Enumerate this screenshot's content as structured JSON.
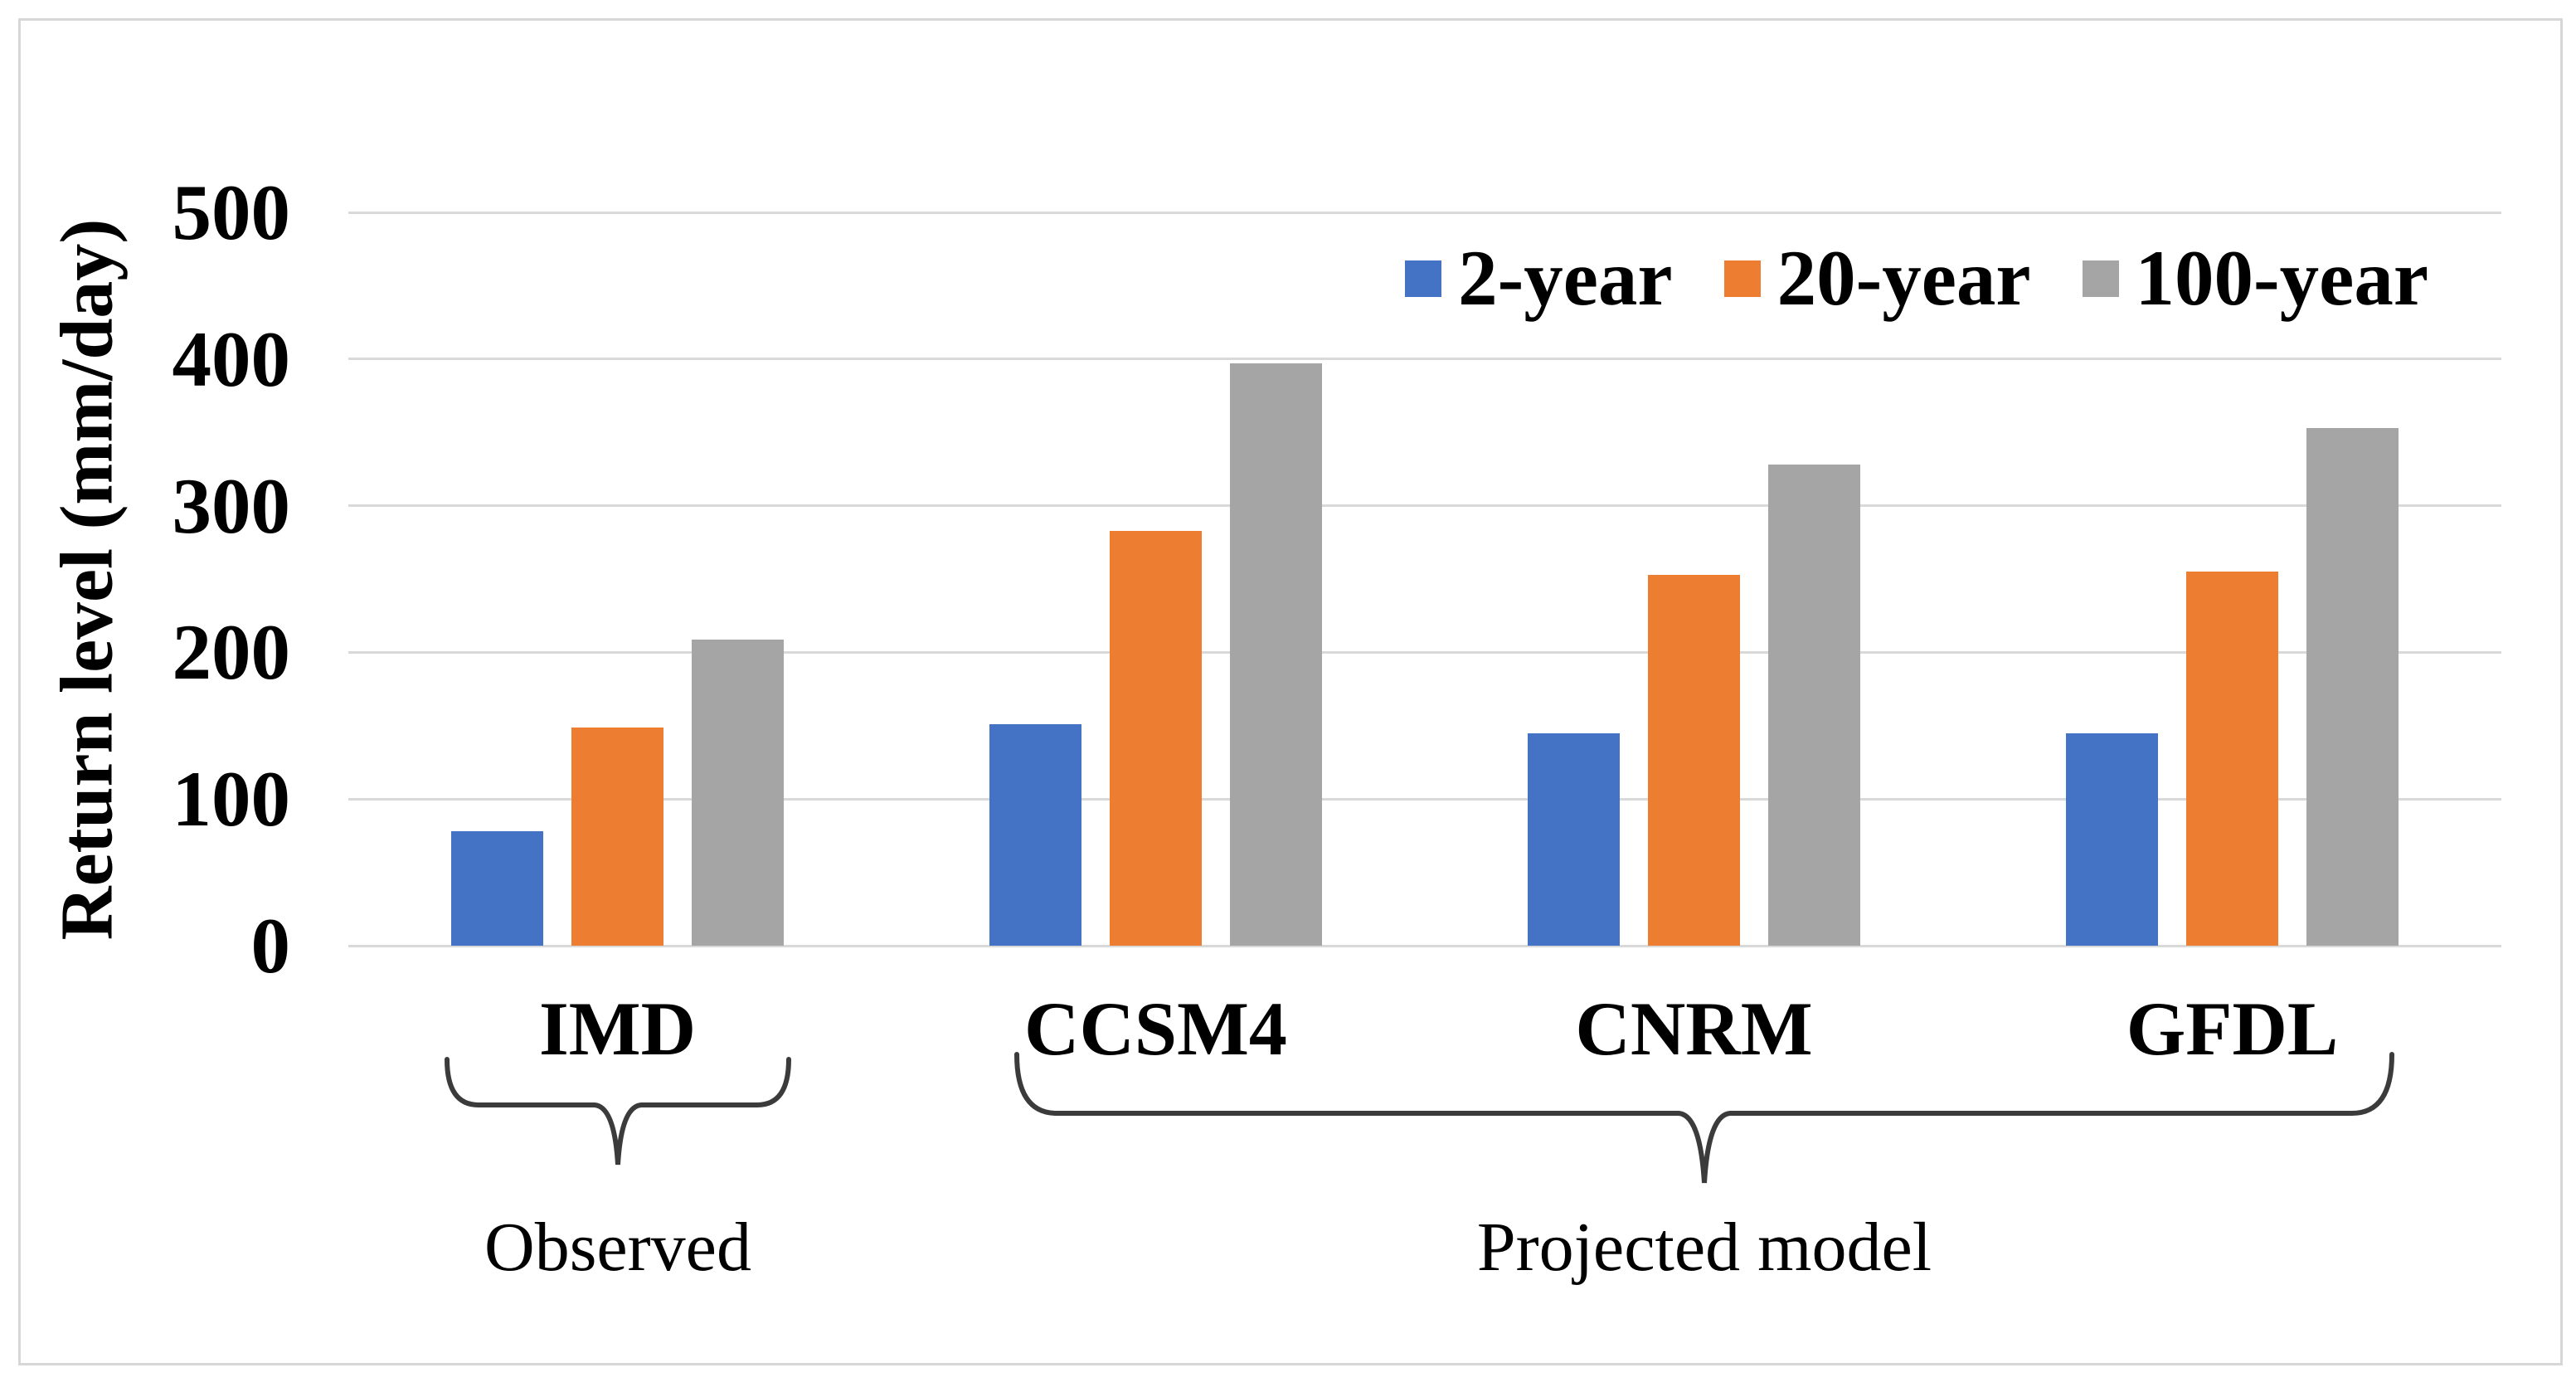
{
  "figure": {
    "ylabel": "Return level (mm/day)"
  },
  "chart_data": {
    "type": "bar",
    "title": "",
    "xlabel": "",
    "ylabel": "Return level (mm/day)",
    "categories": [
      "IMD",
      "CCSM4",
      "CNRM",
      "GFDL"
    ],
    "series": [
      {
        "name": "2-year",
        "color": "#4472C4",
        "values": [
          78,
          151,
          145,
          145
        ]
      },
      {
        "name": "20-year",
        "color": "#ED7D31",
        "values": [
          149,
          283,
          253,
          255
        ]
      },
      {
        "name": "100-year",
        "color": "#A5A5A5",
        "values": [
          209,
          397,
          328,
          353
        ]
      }
    ],
    "ylim": [
      0,
      500
    ],
    "yticks": [
      0,
      100,
      200,
      300,
      400,
      500
    ],
    "grid": true,
    "legend_position": "top-right",
    "group_annotations": [
      {
        "label": "Observed",
        "categories": [
          "IMD"
        ]
      },
      {
        "label": "Projected model",
        "categories": [
          "CCSM4",
          "CNRM",
          "GFDL"
        ]
      }
    ],
    "colors": {
      "gridline": "#D9D9D9",
      "frame_border": "#D7D7D7",
      "brace": "#3B3B3B",
      "text": "#000000"
    }
  }
}
